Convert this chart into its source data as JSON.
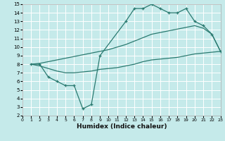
{
  "xlabel": "Humidex (Indice chaleur)",
  "bg_color": "#c5eaea",
  "grid_color": "#ffffff",
  "line_color": "#2a7a70",
  "xlim": [
    0,
    23
  ],
  "ylim": [
    2,
    15
  ],
  "xticks": [
    0,
    1,
    2,
    3,
    4,
    5,
    6,
    7,
    8,
    9,
    10,
    11,
    12,
    13,
    14,
    15,
    16,
    17,
    18,
    19,
    20,
    21,
    22,
    23
  ],
  "yticks": [
    2,
    3,
    4,
    5,
    6,
    7,
    8,
    9,
    10,
    11,
    12,
    13,
    14,
    15
  ],
  "line1_x": [
    1,
    2,
    3,
    4,
    5,
    6,
    7,
    8,
    9,
    12,
    13,
    14,
    15,
    16,
    17,
    18,
    19,
    20,
    21,
    22,
    23
  ],
  "line1_y": [
    8,
    8,
    6.5,
    6,
    5.5,
    5.5,
    2.8,
    3.3,
    9.0,
    13.0,
    14.5,
    14.5,
    15.0,
    14.5,
    14.0,
    14.0,
    14.5,
    13.0,
    12.5,
    11.5,
    9.5
  ],
  "line2_x": [
    1,
    2,
    3,
    4,
    5,
    6,
    7,
    8,
    9,
    10,
    11,
    12,
    13,
    14,
    15,
    16,
    17,
    18,
    19,
    20,
    21,
    22,
    23
  ],
  "line2_y": [
    8.0,
    8.1,
    8.3,
    8.5,
    8.7,
    8.9,
    9.1,
    9.3,
    9.5,
    9.7,
    10.0,
    10.3,
    10.7,
    11.1,
    11.5,
    11.7,
    11.9,
    12.1,
    12.3,
    12.5,
    12.2,
    11.5,
    9.5
  ],
  "line3_x": [
    1,
    2,
    3,
    4,
    5,
    6,
    7,
    8,
    9,
    10,
    11,
    12,
    13,
    14,
    15,
    16,
    17,
    18,
    19,
    20,
    21,
    22,
    23
  ],
  "line3_y": [
    8.0,
    7.8,
    7.5,
    7.2,
    7.0,
    7.0,
    7.1,
    7.2,
    7.4,
    7.5,
    7.6,
    7.8,
    8.0,
    8.3,
    8.5,
    8.6,
    8.7,
    8.8,
    9.0,
    9.2,
    9.3,
    9.4,
    9.5
  ]
}
